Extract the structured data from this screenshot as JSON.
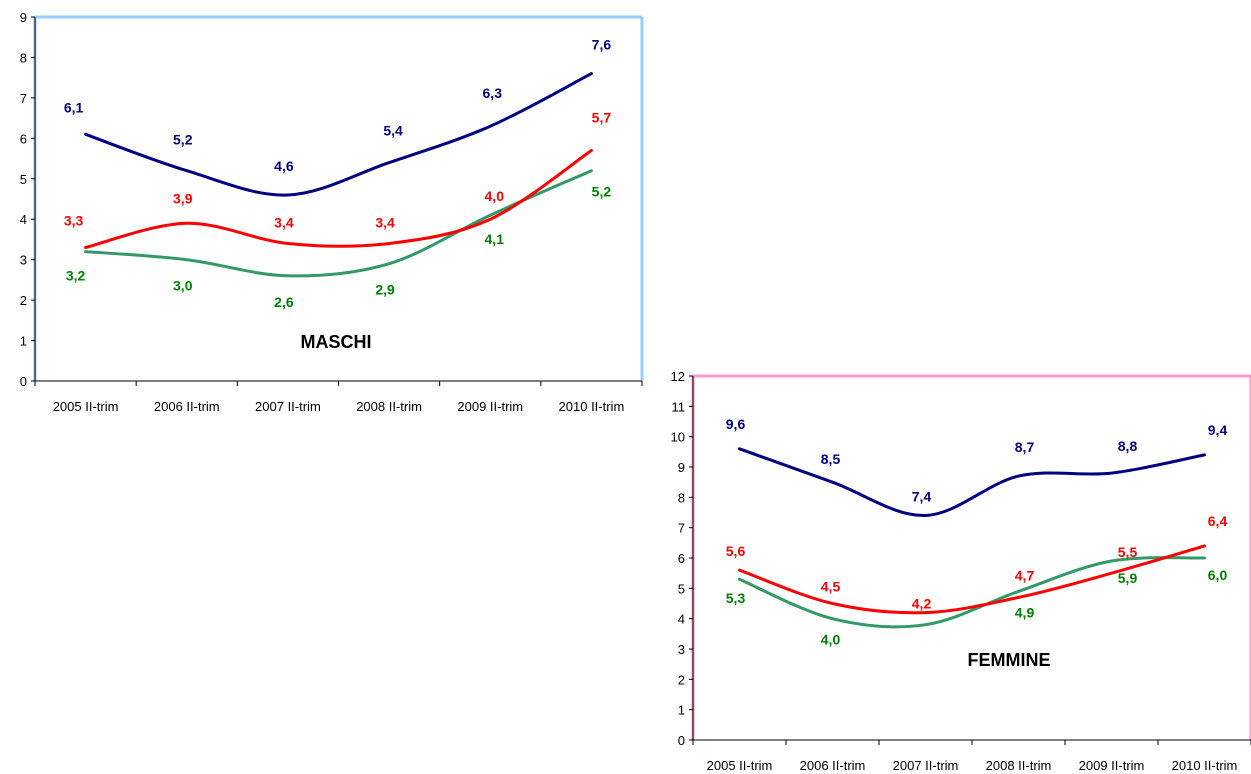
{
  "chart_data": [
    {
      "type": "line",
      "title": "MASCHI",
      "categories": [
        "2005 II-trim",
        "2006 II-trim",
        "2007 II-trim",
        "2008 II-trim",
        "2009 II-trim",
        "2010 II-trim"
      ],
      "ylim": [
        0,
        9
      ],
      "yticks": [
        "0",
        "1",
        "2",
        "3",
        "4",
        "5",
        "6",
        "7",
        "8",
        "9"
      ],
      "border_color": "#99ccff",
      "series": [
        {
          "color": "#000080",
          "values": [
            6.1,
            5.2,
            4.6,
            5.4,
            6.3,
            7.6
          ],
          "labels": [
            "6,1",
            "5,2",
            "4,6",
            "5,4",
            "6,3",
            "7,6"
          ]
        },
        {
          "color": "#ff0000",
          "values": [
            3.3,
            3.9,
            3.4,
            3.4,
            4.0,
            5.7
          ],
          "labels": [
            "3,3",
            "3,9",
            "3,4",
            "3,4",
            "4,0",
            "5,7"
          ]
        },
        {
          "color": "#339966",
          "label_color": "#008000",
          "values": [
            3.2,
            3.0,
            2.6,
            2.9,
            4.1,
            5.2
          ],
          "labels": [
            "3,2",
            "3,0",
            "2,6",
            "2,9",
            "4,1",
            "5,2"
          ]
        }
      ]
    },
    {
      "type": "line",
      "title": "FEMMINE",
      "categories": [
        "2005 II-trim",
        "2006 II-trim",
        "2007 II-trim",
        "2008 II-trim",
        "2009 II-trim",
        "2010 II-trim"
      ],
      "ylim": [
        0,
        12
      ],
      "yticks": [
        "0",
        "1",
        "2",
        "3",
        "4",
        "5",
        "6",
        "7",
        "8",
        "9",
        "10",
        "11",
        "12"
      ],
      "border_color": "#ff99cc",
      "series": [
        {
          "color": "#000080",
          "values": [
            9.6,
            8.5,
            7.4,
            8.7,
            8.8,
            9.4
          ],
          "labels": [
            "9,6",
            "8,5",
            "7,4",
            "8,7",
            "8,8",
            "9,4"
          ]
        },
        {
          "color": "#ff0000",
          "values": [
            5.6,
            4.5,
            4.2,
            4.7,
            5.5,
            6.4
          ],
          "labels": [
            "5,6",
            "4,5",
            "4,2",
            "4,7",
            "5,5",
            "6,4"
          ]
        },
        {
          "color": "#339966",
          "label_color": "#008000",
          "values": [
            5.3,
            4.0,
            3.8,
            4.9,
            5.9,
            6.0
          ],
          "labels": [
            "5,3",
            "4,0",
            "",
            "4,9",
            "5,9",
            "6,0"
          ]
        }
      ]
    }
  ]
}
